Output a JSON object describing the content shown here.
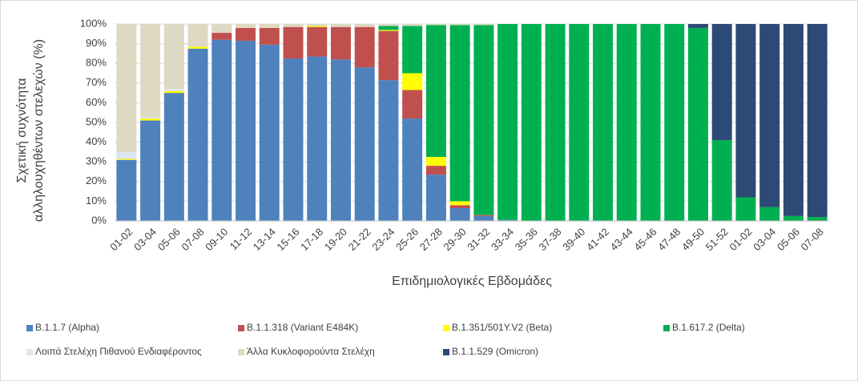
{
  "chart_data": {
    "type": "stacked_bar",
    "ylabel": "Σχετική συχνότητα αλληλουχηθέντων στελεχών (%)",
    "xlabel": "Επιδημιολογικές Εβδομάδες",
    "categories": [
      "01-02",
      "03-04",
      "05-06",
      "07-08",
      "09-10",
      "11-12",
      "13-14",
      "15-16",
      "17-18",
      "19-20",
      "21-22",
      "23-24",
      "25-26",
      "27-28",
      "29-30",
      "31-32",
      "33-34",
      "35-36",
      "37-38",
      "39-40",
      "41-42",
      "43-44",
      "45-46",
      "47-48",
      "49-50",
      "51-52",
      "01-02",
      "03-04",
      "05-06",
      "07-08"
    ],
    "ylim": [
      0,
      100
    ],
    "yticks": [
      {
        "value": 0,
        "label": "0%"
      },
      {
        "value": 10,
        "label": "10%"
      },
      {
        "value": 20,
        "label": "20%"
      },
      {
        "value": 30,
        "label": "30%"
      },
      {
        "value": 40,
        "label": "40%"
      },
      {
        "value": 50,
        "label": "50%"
      },
      {
        "value": 60,
        "label": "60%"
      },
      {
        "value": 70,
        "label": "70%"
      },
      {
        "value": 80,
        "label": "80%"
      },
      {
        "value": 90,
        "label": "90%"
      },
      {
        "value": 100,
        "label": "100%"
      }
    ],
    "grid": true,
    "legend": "bottom",
    "series": [
      {
        "name": "B.1.1.7 (Alpha)",
        "color": "#4f81bd",
        "values": [
          31,
          51,
          65,
          87.5,
          92,
          91.5,
          89.5,
          82.5,
          83.5,
          82,
          78,
          71.5,
          52,
          23.5,
          6.5,
          2.5,
          0.5,
          0,
          0,
          0,
          0,
          0,
          0,
          0,
          0,
          0,
          0,
          0,
          0,
          0
        ]
      },
      {
        "name": "B.1.1.318 (Variant E484K)",
        "color": "#c0504d",
        "values": [
          0,
          0,
          0,
          0,
          3.5,
          6.5,
          8.5,
          16,
          15,
          16.5,
          20.5,
          25,
          14.5,
          4.5,
          1.5,
          0.5,
          0,
          0,
          0,
          0,
          0,
          0,
          0,
          0,
          0,
          0,
          0,
          0,
          0,
          0
        ]
      },
      {
        "name": "B.1.351/501Y.V2 (Beta)",
        "color": "#ffff00",
        "values": [
          0.5,
          1,
          1,
          1,
          0,
          0,
          0,
          0,
          0.5,
          0,
          0,
          0.5,
          8.5,
          4.5,
          2,
          0,
          0,
          0,
          0,
          0,
          0,
          0,
          0,
          0,
          0,
          0,
          0,
          0,
          0,
          0
        ]
      },
      {
        "name": "B.1.617.2 (Delta)",
        "color": "#00b050",
        "values": [
          0,
          0,
          0,
          0,
          0,
          0,
          0,
          0,
          0,
          0,
          0,
          2,
          24,
          67,
          89.5,
          96.5,
          99.5,
          100,
          100,
          100,
          100,
          100,
          100,
          100,
          98,
          41,
          12,
          7,
          2.5,
          2
        ]
      },
      {
        "name": "Λοιπά Στελέχη Πιθανού Ενδιαφέροντος",
        "color": "#dce6f2",
        "values": [
          3.5,
          0.5,
          1,
          0,
          0,
          0,
          0,
          0,
          0,
          0,
          0,
          0,
          0,
          0,
          0,
          0,
          0,
          0,
          0,
          0,
          0,
          0,
          0,
          0,
          0,
          0,
          0,
          0,
          0,
          0
        ]
      },
      {
        "name": "Άλλα Κυκλοφορούντα Στελέχη",
        "color": "#ddd9c3",
        "values": [
          65,
          47.5,
          33,
          11.5,
          4.5,
          2,
          2,
          1.5,
          1,
          1.5,
          1.5,
          1,
          1,
          0.5,
          0.5,
          0.5,
          0,
          0,
          0,
          0,
          0,
          0,
          0,
          0,
          0,
          0,
          0,
          0,
          0,
          0
        ]
      },
      {
        "name": "B.1.1.529 (Omicron)",
        "color": "#2c4a76",
        "values": [
          0,
          0,
          0,
          0,
          0,
          0,
          0,
          0,
          0,
          0,
          0,
          0,
          0,
          0,
          0,
          0,
          0,
          0,
          0,
          0,
          0,
          0,
          0,
          0,
          2,
          59,
          88,
          93,
          97.5,
          98
        ]
      }
    ]
  }
}
